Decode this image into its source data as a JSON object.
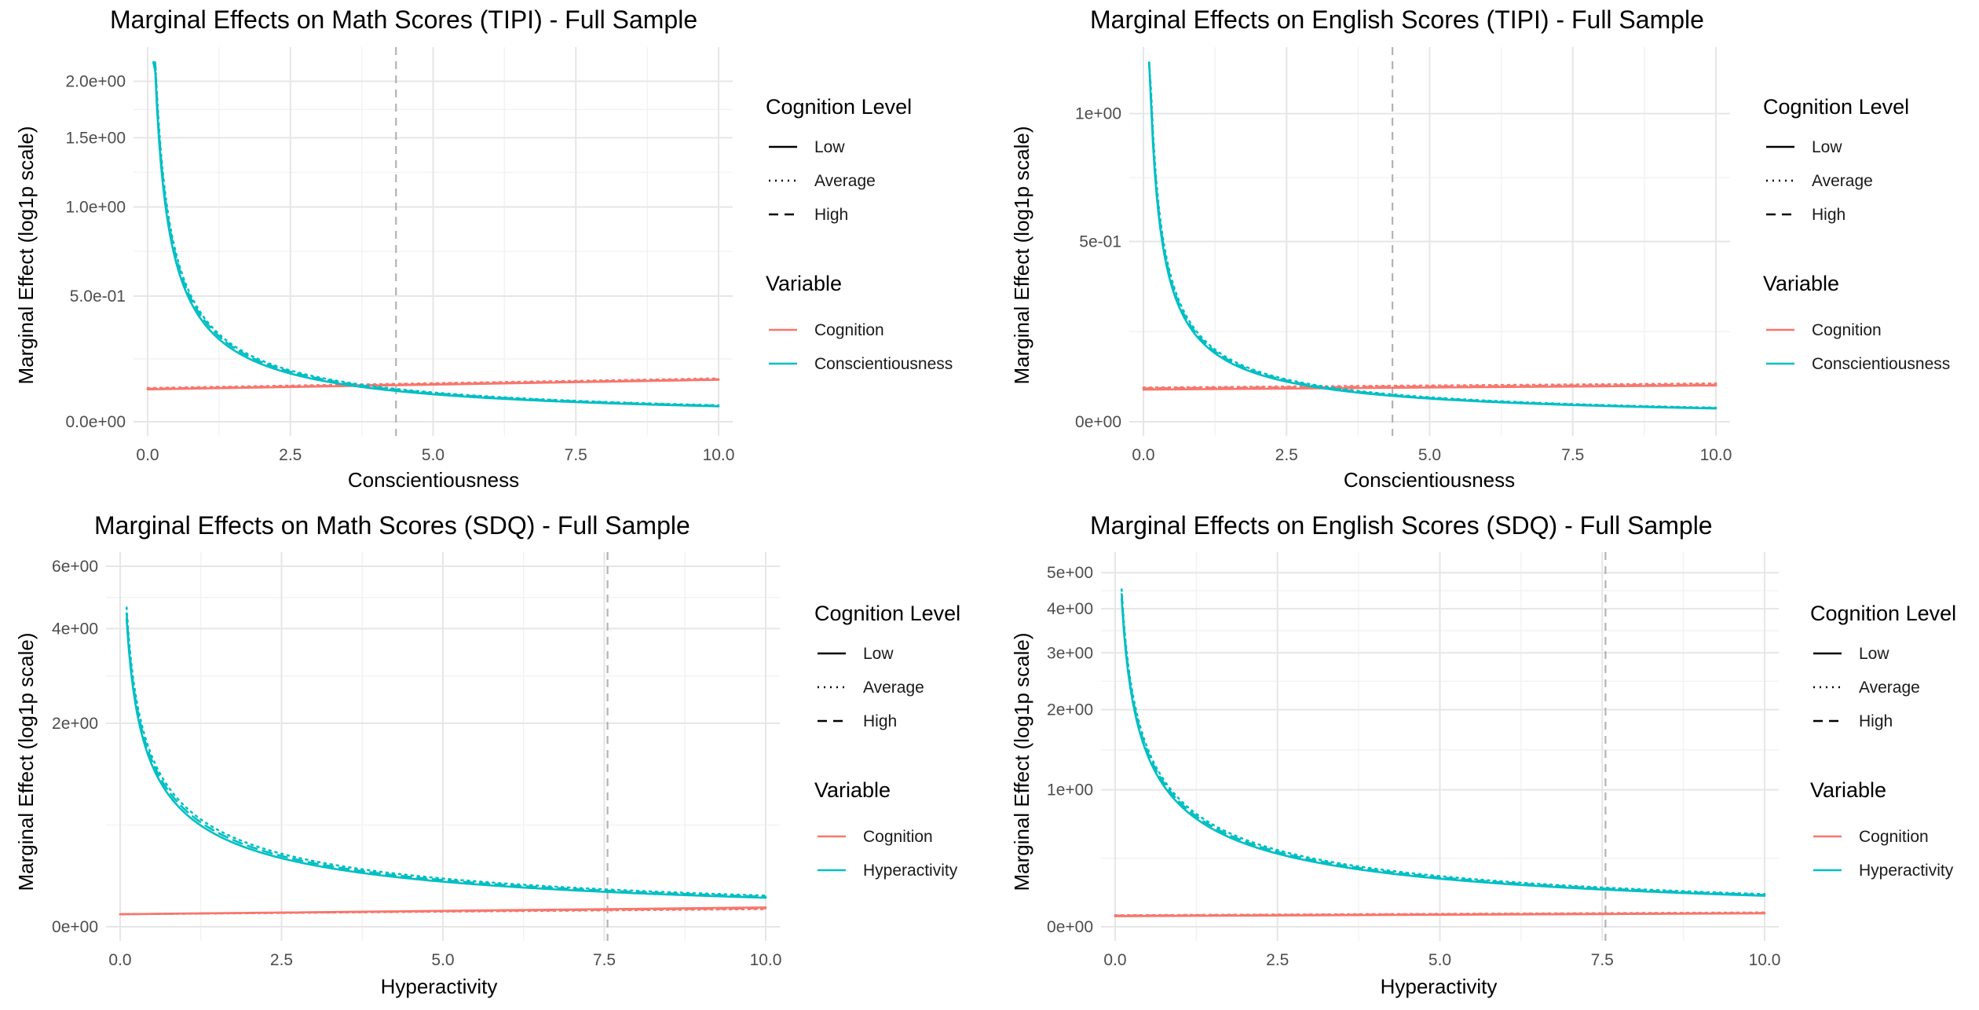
{
  "chart_data": [
    {
      "type": "line",
      "title": "Marginal Effects on Math Scores (TIPI) - Full Sample",
      "xlabel": "Conscientiousness",
      "ylabel": "Marginal Effect (log1p scale)",
      "y_scale": "log1p",
      "xlim": [
        0,
        10
      ],
      "ylim": [
        0,
        2.2
      ],
      "x_ticks": [
        0,
        2.5,
        5,
        7.5,
        10
      ],
      "x_tick_labels": [
        "0.0",
        "2.5",
        "5.0",
        "7.5",
        "10.0"
      ],
      "y_ticks": [
        0,
        0.5,
        1.0,
        1.5,
        2.0
      ],
      "y_tick_labels": [
        "0.0e+00",
        "5.0e-01",
        "1.0e+00",
        "1.5e+00",
        "2.0e+00"
      ],
      "vline_x": 4.35,
      "legend": {
        "position": "right",
        "linetype_title": "Cognition Level",
        "linetype_labels": [
          "Low",
          "Average",
          "High"
        ],
        "color_title": "Variable",
        "color_labels": [
          "Cognition",
          "Conscientiousness"
        ]
      },
      "series_params": {
        "main": {
          "a": 0.37,
          "p": 0.86,
          "scale": [
            1.0,
            1.07,
            1.04
          ]
        },
        "flat": {
          "start": [
            0.11,
            0.115,
            0.112
          ],
          "end": [
            0.145,
            0.15,
            0.147
          ]
        }
      },
      "series": [
        {
          "name": "Conscientiousness – Low",
          "variable": "Conscientiousness",
          "level": "Low",
          "x": [
            0.1,
            0.2,
            0.3,
            0.5,
            0.75,
            1,
            1.5,
            2,
            2.5,
            3,
            4,
            5,
            6,
            7,
            8,
            9,
            10
          ],
          "y": [
            2.1,
            1.5,
            1.1,
            0.7,
            0.5,
            0.38,
            0.26,
            0.2,
            0.17,
            0.14,
            0.12,
            0.1,
            0.09,
            0.08,
            0.07,
            0.06,
            0.05
          ]
        },
        {
          "name": "Conscientiousness – Average",
          "variable": "Conscientiousness",
          "level": "Average",
          "x": [
            0.1,
            0.2,
            0.3,
            0.5,
            0.75,
            1,
            1.5,
            2,
            2.5,
            3,
            4,
            5,
            6,
            7,
            8,
            9,
            10
          ],
          "y": [
            2.2,
            1.6,
            1.2,
            0.75,
            0.54,
            0.41,
            0.28,
            0.22,
            0.18,
            0.15,
            0.12,
            0.1,
            0.09,
            0.08,
            0.07,
            0.06,
            0.05
          ]
        },
        {
          "name": "Conscientiousness – High",
          "variable": "Conscientiousness",
          "level": "High",
          "x": [
            0.1,
            0.2,
            0.3,
            0.5,
            0.75,
            1,
            1.5,
            2,
            2.5,
            3,
            4,
            5,
            6,
            7,
            8,
            9,
            10
          ],
          "y": [
            2.15,
            1.55,
            1.15,
            0.72,
            0.52,
            0.4,
            0.27,
            0.21,
            0.17,
            0.14,
            0.12,
            0.1,
            0.09,
            0.08,
            0.07,
            0.06,
            0.05
          ]
        },
        {
          "name": "Cognition – Low",
          "variable": "Cognition",
          "level": "Low",
          "x": [
            0.1,
            10
          ],
          "y": [
            0.13,
            0.15
          ]
        },
        {
          "name": "Cognition – Average",
          "variable": "Cognition",
          "level": "Average",
          "x": [
            0.1,
            10
          ],
          "y": [
            0.13,
            0.15
          ]
        },
        {
          "name": "Cognition – High",
          "variable": "Cognition",
          "level": "High",
          "x": [
            0.1,
            10
          ],
          "y": [
            0.13,
            0.15
          ]
        }
      ]
    },
    {
      "type": "line",
      "title": "Marginal Effects on English Scores (TIPI) - Full Sample",
      "xlabel": "Conscientiousness",
      "ylabel": "Marginal Effect (log1p scale)",
      "y_scale": "log1p",
      "xlim": [
        0,
        10
      ],
      "ylim": [
        0,
        1.25
      ],
      "x_ticks": [
        0,
        2.5,
        5,
        7.5,
        10
      ],
      "x_tick_labels": [
        "0.0",
        "2.5",
        "5.0",
        "7.5",
        "10.0"
      ],
      "y_ticks": [
        0,
        0.5,
        1.0
      ],
      "y_tick_labels": [
        "0e+00",
        "5e-01",
        "1e+00"
      ],
      "vline_x": 4.35,
      "legend": {
        "position": "right",
        "linetype_title": "Cognition Level",
        "linetype_labels": [
          "Low",
          "Average",
          "High"
        ],
        "color_title": "Variable",
        "color_labels": [
          "Cognition",
          "Conscientiousness"
        ]
      },
      "series_params": {
        "main": {
          "a": 0.2,
          "p": 0.82,
          "scale": [
            1.0,
            1.06,
            1.03
          ]
        },
        "flat": {
          "start": [
            0.075,
            0.08,
            0.078
          ],
          "end": [
            0.085,
            0.09,
            0.087
          ]
        }
      },
      "series": [
        {
          "name": "Conscientiousness – Low",
          "variable": "Conscientiousness",
          "level": "Low",
          "x": [
            0.1,
            0.2,
            0.3,
            0.5,
            0.75,
            1,
            1.5,
            2,
            2.5,
            3,
            4,
            5,
            6,
            7,
            8,
            9,
            10
          ],
          "y": [
            1.2,
            0.75,
            0.55,
            0.35,
            0.25,
            0.19,
            0.13,
            0.1,
            0.08,
            0.07,
            0.05,
            0.04,
            0.035,
            0.03,
            0.027,
            0.025,
            0.022
          ]
        },
        {
          "name": "Conscientiousness – Average",
          "variable": "Conscientiousness",
          "level": "Average",
          "x": [
            0.1,
            0.2,
            0.3,
            0.5,
            0.75,
            1,
            1.5,
            2,
            2.5,
            3,
            4,
            5,
            6,
            7,
            8,
            9,
            10
          ],
          "y": [
            1.25,
            0.8,
            0.58,
            0.37,
            0.26,
            0.2,
            0.14,
            0.11,
            0.09,
            0.075,
            0.055,
            0.045,
            0.037,
            0.032,
            0.028,
            0.026,
            0.023
          ]
        },
        {
          "name": "Conscientiousness – High",
          "variable": "Conscientiousness",
          "level": "High",
          "x": [
            0.1,
            0.2,
            0.3,
            0.5,
            0.75,
            1,
            1.5,
            2,
            2.5,
            3,
            4,
            5,
            6,
            7,
            8,
            9,
            10
          ],
          "y": [
            1.22,
            0.78,
            0.56,
            0.36,
            0.25,
            0.19,
            0.13,
            0.1,
            0.08,
            0.07,
            0.05,
            0.04,
            0.035,
            0.03,
            0.027,
            0.025,
            0.022
          ]
        },
        {
          "name": "Cognition – Low",
          "variable": "Cognition",
          "level": "Low",
          "x": [
            0.1,
            10
          ],
          "y": [
            0.08,
            0.09
          ]
        },
        {
          "name": "Cognition – Average",
          "variable": "Cognition",
          "level": "Average",
          "x": [
            0.1,
            10
          ],
          "y": [
            0.08,
            0.09
          ]
        },
        {
          "name": "Cognition – High",
          "variable": "Cognition",
          "level": "High",
          "x": [
            0.1,
            10
          ],
          "y": [
            0.08,
            0.09
          ]
        }
      ]
    },
    {
      "type": "line",
      "title": "Marginal Effects on Math Scores (SDQ) - Full Sample",
      "xlabel": "Hyperactivity",
      "ylabel": "Marginal Effect (log1p scale)",
      "y_scale": "log1p",
      "xlim": [
        0,
        10
      ],
      "ylim": [
        0,
        6
      ],
      "x_ticks": [
        0,
        2.5,
        5,
        7.5,
        10
      ],
      "x_tick_labels": [
        "0.0",
        "2.5",
        "5.0",
        "7.5",
        "10.0"
      ],
      "y_ticks": [
        0,
        2,
        4,
        6
      ],
      "y_tick_labels": [
        "0e+00",
        "2e+00",
        "4e+00",
        "6e+00"
      ],
      "vline_x": 7.55,
      "legend": {
        "position": "right",
        "linetype_title": "Cognition Level",
        "linetype_labels": [
          "Low",
          "Average",
          "High"
        ],
        "color_title": "Variable",
        "color_labels": [
          "Cognition",
          "Hyperactivity"
        ]
      },
      "series_params": {
        "main": {
          "a": 0.85,
          "p": 0.7,
          "scale": [
            1.0,
            1.08,
            1.04
          ]
        },
        "flat": {
          "start": [
            0.07,
            0.07,
            0.07
          ],
          "end": [
            0.11,
            0.1,
            0.105
          ]
        }
      },
      "series": [
        {
          "name": "Hyperactivity – Low",
          "variable": "Hyperactivity",
          "level": "Low",
          "x": [
            0.1,
            0.2,
            0.3,
            0.5,
            0.75,
            1,
            1.5,
            2,
            2.5,
            3,
            4,
            5,
            6,
            7,
            8,
            9,
            10
          ],
          "y": [
            5.2,
            3.8,
            3.0,
            2.1,
            1.6,
            1.25,
            0.88,
            0.68,
            0.55,
            0.46,
            0.34,
            0.27,
            0.22,
            0.19,
            0.16,
            0.14,
            0.12
          ]
        },
        {
          "name": "Hyperactivity – Average",
          "variable": "Hyperactivity",
          "level": "Average",
          "x": [
            0.1,
            0.2,
            0.3,
            0.5,
            0.75,
            1,
            1.5,
            2,
            2.5,
            3,
            4,
            5,
            6,
            7,
            8,
            9,
            10
          ],
          "y": [
            5.5,
            4.0,
            3.2,
            2.3,
            1.75,
            1.38,
            0.97,
            0.75,
            0.6,
            0.5,
            0.37,
            0.29,
            0.24,
            0.2,
            0.17,
            0.15,
            0.13
          ]
        },
        {
          "name": "Hyperactivity – High",
          "variable": "Hyperactivity",
          "level": "High",
          "x": [
            0.1,
            0.2,
            0.3,
            0.5,
            0.75,
            1,
            1.5,
            2,
            2.5,
            3,
            4,
            5,
            6,
            7,
            8,
            9,
            10
          ],
          "y": [
            5.35,
            3.9,
            3.1,
            2.2,
            1.68,
            1.32,
            0.92,
            0.72,
            0.58,
            0.48,
            0.36,
            0.28,
            0.23,
            0.19,
            0.165,
            0.145,
            0.125
          ]
        },
        {
          "name": "Cognition – Low",
          "variable": "Cognition",
          "level": "Low",
          "x": [
            0.1,
            10
          ],
          "y": [
            0.08,
            0.11
          ]
        },
        {
          "name": "Cognition – Average",
          "variable": "Cognition",
          "level": "Average",
          "x": [
            0.1,
            10
          ],
          "y": [
            0.08,
            0.11
          ]
        },
        {
          "name": "Cognition – High",
          "variable": "Cognition",
          "level": "High",
          "x": [
            0.1,
            10
          ],
          "y": [
            0.08,
            0.11
          ]
        }
      ]
    },
    {
      "type": "line",
      "title": "Marginal Effects on English Scores (SDQ) - Full Sample",
      "xlabel": "Hyperactivity",
      "ylabel": "Marginal Effect (log1p scale)",
      "y_scale": "log1p",
      "xlim": [
        0,
        10
      ],
      "ylim": [
        0,
        5.2
      ],
      "x_ticks": [
        0,
        2.5,
        5,
        7.5,
        10
      ],
      "x_tick_labels": [
        "0.0",
        "2.5",
        "5.0",
        "7.5",
        "10.0"
      ],
      "y_ticks": [
        0,
        1,
        2,
        3,
        4,
        5
      ],
      "y_tick_labels": [
        "0e+00",
        "1e+00",
        "2e+00",
        "3e+00",
        "4e+00",
        "5e+00"
      ],
      "vline_x": 7.55,
      "legend": {
        "position": "right",
        "linetype_title": "Cognition Level",
        "linetype_labels": [
          "Low",
          "Average",
          "High"
        ],
        "color_title": "Variable",
        "color_labels": [
          "Cognition",
          "Hyperactivity"
        ]
      },
      "series_params": {
        "main": {
          "a": 0.85,
          "p": 0.7,
          "scale": [
            1.0,
            1.06,
            1.03
          ]
        },
        "flat": {
          "start": [
            0.055,
            0.06,
            0.058
          ],
          "end": [
            0.07,
            0.075,
            0.072
          ]
        }
      },
      "series": [
        {
          "name": "Hyperactivity – Low",
          "variable": "Hyperactivity",
          "level": "Low",
          "x": [
            0.1,
            0.2,
            0.3,
            0.5,
            0.75,
            1,
            1.5,
            2,
            2.5,
            3,
            4,
            5,
            6,
            7,
            8,
            9,
            10
          ],
          "y": [
            4.7,
            3.3,
            2.5,
            1.6,
            1.15,
            0.87,
            0.58,
            0.44,
            0.35,
            0.29,
            0.22,
            0.18,
            0.15,
            0.13,
            0.11,
            0.1,
            0.09
          ]
        },
        {
          "name": "Hyperactivity – Average",
          "variable": "Hyperactivity",
          "level": "Average",
          "x": [
            0.1,
            0.2,
            0.3,
            0.5,
            0.75,
            1,
            1.5,
            2,
            2.5,
            3,
            4,
            5,
            6,
            7,
            8,
            9,
            10
          ],
          "y": [
            4.95,
            3.5,
            2.65,
            1.7,
            1.22,
            0.92,
            0.62,
            0.47,
            0.37,
            0.31,
            0.23,
            0.19,
            0.16,
            0.14,
            0.12,
            0.11,
            0.1
          ]
        },
        {
          "name": "Hyperactivity – High",
          "variable": "Hyperactivity",
          "level": "High",
          "x": [
            0.1,
            0.2,
            0.3,
            0.5,
            0.75,
            1,
            1.5,
            2,
            2.5,
            3,
            4,
            5,
            6,
            7,
            8,
            9,
            10
          ],
          "y": [
            4.8,
            3.4,
            2.55,
            1.65,
            1.18,
            0.9,
            0.6,
            0.45,
            0.36,
            0.3,
            0.22,
            0.18,
            0.15,
            0.13,
            0.115,
            0.1,
            0.09
          ]
        },
        {
          "name": "Cognition – Low",
          "variable": "Cognition",
          "level": "Low",
          "x": [
            0.1,
            10
          ],
          "y": [
            0.06,
            0.075
          ]
        },
        {
          "name": "Cognition – Average",
          "variable": "Cognition",
          "level": "Average",
          "x": [
            0.1,
            10
          ],
          "y": [
            0.06,
            0.075
          ]
        },
        {
          "name": "Cognition – High",
          "variable": "Cognition",
          "level": "High",
          "x": [
            0.1,
            10
          ],
          "y": [
            0.06,
            0.075
          ]
        }
      ]
    }
  ],
  "colors": {
    "cognition": "#F8766D",
    "main_variable": "#00BFC4",
    "vline": "#b3b3b3",
    "grid": "#e6e6e6"
  },
  "linetypes": {
    "Low": "solid",
    "Average": "dotted",
    "High": "dashed"
  }
}
